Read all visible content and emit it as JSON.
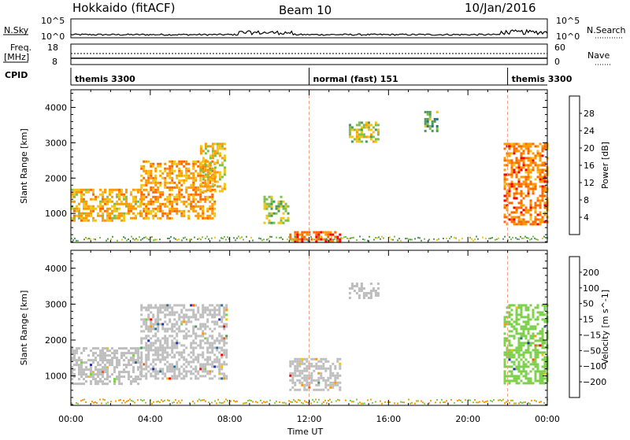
{
  "header": {
    "station": "Hokkaido (fitACF)",
    "beam": "Beam 10",
    "date": "10/Jan/2016"
  },
  "strip_labels": {
    "nsky": "N.Sky",
    "nsky_ticks": [
      "10^5",
      "10^0"
    ],
    "nsearch": "N.Search",
    "nsearch_ticks": [
      "10^5",
      "10^0"
    ],
    "freq_line1": "Freq.",
    "freq_line2": "[MHz]",
    "freq_ticks": [
      "18",
      "8"
    ],
    "nave": "Nave",
    "nave_ticks": [
      "60",
      "0"
    ],
    "cpid": "CPID"
  },
  "cpid_segments": [
    {
      "label": "themis 3300",
      "start": 0,
      "end": 12
    },
    {
      "label": "normal (fast) 151",
      "start": 12,
      "end": 22
    },
    {
      "label": "themis 3300",
      "start": 22,
      "end": 24
    }
  ],
  "chart_data": [
    {
      "type": "heatmap",
      "panel": "power",
      "xlabel": "Time UT",
      "ylabel": "Slant Range [km]",
      "xlim": [
        0,
        24
      ],
      "ylim": [
        180,
        4500
      ],
      "x_ticks": [
        "00:00",
        "04:00",
        "08:00",
        "12:00",
        "16:00",
        "20:00",
        "00:00"
      ],
      "y_ticks": [
        1000,
        2000,
        3000,
        4000
      ],
      "colorbar": {
        "label": "Power [dB]",
        "ticks": [
          4,
          8,
          12,
          16,
          20,
          24,
          28
        ],
        "range": [
          0,
          32
        ],
        "colors": [
          "#0000ff",
          "#1a3aa8",
          "#2f6f7a",
          "#4c9a5a",
          "#7cc049",
          "#f0c419",
          "#ff9900",
          "#ff6a00",
          "#ff0000"
        ]
      },
      "regions": [
        {
          "t0": 0.0,
          "t1": 3.5,
          "r0": 800,
          "r1": 1700,
          "level": 22
        },
        {
          "t0": 3.5,
          "t1": 7.2,
          "r0": 850,
          "r1": 2500,
          "level": 24
        },
        {
          "t0": 6.5,
          "t1": 7.8,
          "r0": 1600,
          "r1": 3000,
          "level": 20
        },
        {
          "t0": 9.7,
          "t1": 11.0,
          "r0": 700,
          "r1": 1500,
          "level": 16
        },
        {
          "t0": 11.0,
          "t1": 13.5,
          "r0": 200,
          "r1": 500,
          "level": 28
        },
        {
          "t0": 14.0,
          "t1": 15.5,
          "r0": 3000,
          "r1": 3600,
          "level": 18
        },
        {
          "t0": 17.8,
          "t1": 18.5,
          "r0": 3300,
          "r1": 3900,
          "level": 14
        },
        {
          "t0": 21.8,
          "t1": 24.0,
          "r0": 700,
          "r1": 3000,
          "level": 26
        }
      ]
    },
    {
      "type": "heatmap",
      "panel": "velocity",
      "xlabel": "Time UT",
      "ylabel": "Slant Range [km]",
      "xlim": [
        0,
        24
      ],
      "ylim": [
        180,
        4500
      ],
      "x_ticks": [
        "00:00",
        "04:00",
        "08:00",
        "12:00",
        "16:00",
        "20:00",
        "00:00"
      ],
      "y_ticks": [
        1000,
        2000,
        3000,
        4000
      ],
      "colorbar": {
        "label": "Velocity [m s^-1]",
        "ticks": [
          200,
          100,
          50,
          15,
          -15,
          -50,
          -100,
          -200
        ],
        "colors": [
          "#1a2fbf",
          "#2c6f8f",
          "#3f9f4f",
          "#7cd04a",
          "#bebebe",
          "#f2c200",
          "#ff9900",
          "#ff5a00",
          "#ff0000"
        ]
      },
      "regions": [
        {
          "t0": 0.0,
          "t1": 3.5,
          "r0": 800,
          "r1": 1800,
          "level": 0
        },
        {
          "t0": 3.5,
          "t1": 7.8,
          "r0": 900,
          "r1": 3000,
          "level": 0
        },
        {
          "t0": 11.0,
          "t1": 13.5,
          "r0": 600,
          "r1": 1500,
          "level": 0
        },
        {
          "t0": 14.0,
          "t1": 15.5,
          "r0": 3200,
          "r1": 3600,
          "level": 0
        },
        {
          "t0": 21.8,
          "t1": 24.0,
          "r0": 800,
          "r1": 3000,
          "level": 40
        }
      ]
    }
  ]
}
